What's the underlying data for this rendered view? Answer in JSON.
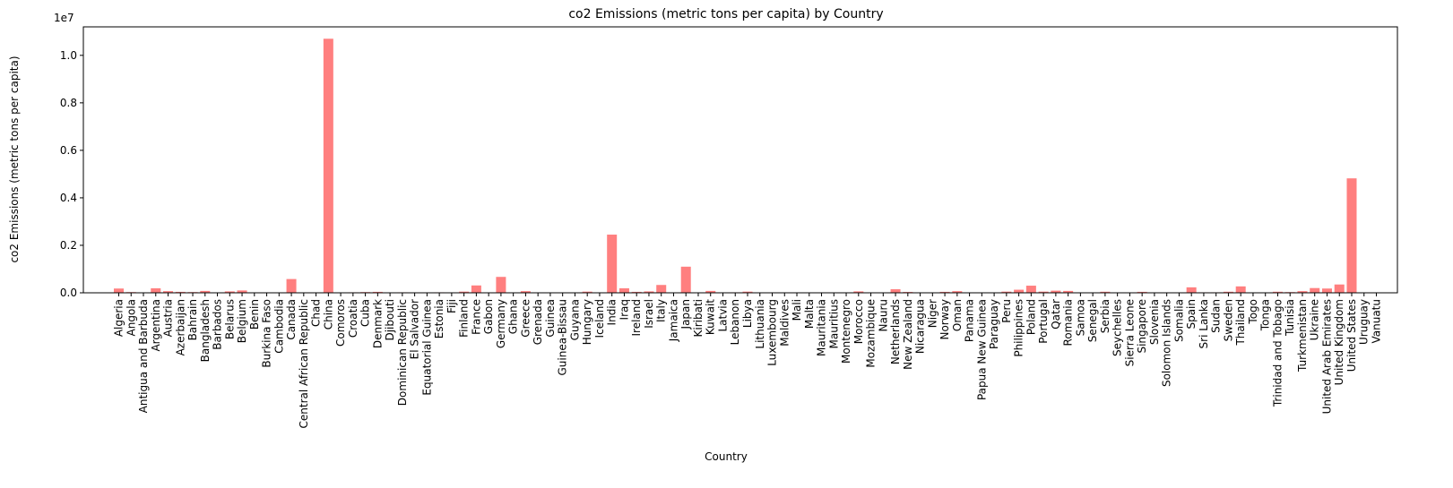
{
  "chart_data": {
    "type": "bar",
    "title": "co2 Emissions (metric tons per capita) by Country",
    "xlabel": "Country",
    "ylabel": "co2 Emissions (metric tons per capita)",
    "y_offset_label": "1e7",
    "yticks": [
      0.0,
      0.2,
      0.4,
      0.6,
      0.8,
      1.0
    ],
    "ylim": [
      0,
      11200000
    ],
    "bar_color": "#ff7f7f",
    "grid": false,
    "categories": [
      "Algeria",
      "Angola",
      "Antigua and Barbuda",
      "Argentina",
      "Austria",
      "Azerbaijan",
      "Bahrain",
      "Bangladesh",
      "Barbados",
      "Belarus",
      "Belgium",
      "Benin",
      "Burkina Faso",
      "Cambodia",
      "Canada",
      "Central African Republic",
      "Chad",
      "China",
      "Comoros",
      "Croatia",
      "Cuba",
      "Denmark",
      "Djibouti",
      "Dominican Republic",
      "El Salvador",
      "Equatorial Guinea",
      "Estonia",
      "Fiji",
      "Finland",
      "France",
      "Gabon",
      "Germany",
      "Ghana",
      "Greece",
      "Grenada",
      "Guinea",
      "Guinea-Bissau",
      "Guyana",
      "Hungary",
      "Iceland",
      "India",
      "Iraq",
      "Ireland",
      "Israel",
      "Italy",
      "Jamaica",
      "Japan",
      "Kiribati",
      "Kuwait",
      "Latvia",
      "Lebanon",
      "Libya",
      "Lithuania",
      "Luxembourg",
      "Maldives",
      "Mali",
      "Malta",
      "Mauritania",
      "Mauritius",
      "Montenegro",
      "Morocco",
      "Mozambique",
      "Nauru",
      "Netherlands",
      "New Zealand",
      "Nicaragua",
      "Niger",
      "Norway",
      "Oman",
      "Panama",
      "Papua New Guinea",
      "Paraguay",
      "Peru",
      "Philippines",
      "Poland",
      "Portugal",
      "Qatar",
      "Romania",
      "Samoa",
      "Senegal",
      "Serbia",
      "Seychelles",
      "Sierra Leone",
      "Singapore",
      "Slovenia",
      "Solomon Islands",
      "Somalia",
      "Spain",
      "Sri Lanka",
      "Sudan",
      "Sweden",
      "Thailand",
      "Togo",
      "Tonga",
      "Trinidad and Tobago",
      "Tunisia",
      "Turkmenistan",
      "Ukraine",
      "United Arab Emirates",
      "United Kingdom",
      "United States",
      "Uruguay",
      "Vanuatu"
    ],
    "values": [
      180000,
      30000,
      5000,
      190000,
      70000,
      40000,
      30000,
      80000,
      1000,
      60000,
      100000,
      5000,
      3000,
      8000,
      580000,
      300,
      1000,
      10700000,
      200,
      20000,
      30000,
      40000,
      500,
      20000,
      7000,
      5000,
      20000,
      1000,
      50000,
      310000,
      6000,
      670000,
      15000,
      70000,
      200,
      3000,
      300,
      2000,
      50000,
      2000,
      2450000,
      190000,
      40000,
      60000,
      330000,
      8000,
      1100000,
      100,
      80000,
      8000,
      20000,
      50000,
      15000,
      10000,
      1000,
      2000,
      2000,
      3000,
      4000,
      3000,
      60000,
      8000,
      100,
      150000,
      35000,
      5000,
      2000,
      40000,
      70000,
      10000,
      6000,
      6000,
      50000,
      130000,
      300000,
      50000,
      90000,
      80000,
      200,
      9000,
      45000,
      500,
      1000,
      40000,
      15000,
      300,
      1000,
      230000,
      20000,
      20000,
      45000,
      270000,
      2000,
      100,
      45000,
      30000,
      70000,
      200000,
      180000,
      350000,
      4820000,
      7000,
      200
    ]
  }
}
